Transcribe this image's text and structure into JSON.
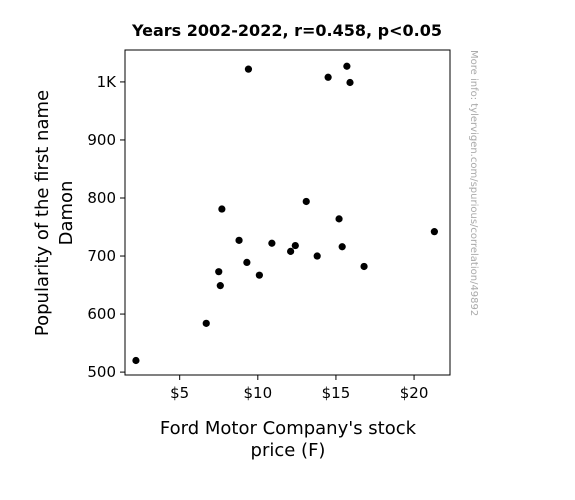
{
  "chart_data": {
    "type": "scatter",
    "title": "Years 2002-2022, r=0.458, p<0.05",
    "xlabel": [
      "Ford Motor Company's stock",
      "price (F)"
    ],
    "ylabel": [
      "Popularity of the first name",
      "Damon"
    ],
    "xlim": [
      1.5,
      22.3
    ],
    "ylim": [
      495,
      1055
    ],
    "x_ticks": [
      {
        "value": 5,
        "label": "$5"
      },
      {
        "value": 10,
        "label": "$10"
      },
      {
        "value": 15,
        "label": "$15"
      },
      {
        "value": 20,
        "label": "$20"
      }
    ],
    "y_ticks": [
      {
        "value": 500,
        "label": "500"
      },
      {
        "value": 600,
        "label": "600"
      },
      {
        "value": 700,
        "label": "700"
      },
      {
        "value": 800,
        "label": "800"
      },
      {
        "value": 900,
        "label": "900"
      },
      {
        "value": 1000,
        "label": "1K"
      }
    ],
    "points": [
      {
        "x": 2.2,
        "y": 520
      },
      {
        "x": 6.7,
        "y": 584
      },
      {
        "x": 7.5,
        "y": 673
      },
      {
        "x": 7.6,
        "y": 649
      },
      {
        "x": 7.7,
        "y": 781
      },
      {
        "x": 8.8,
        "y": 727
      },
      {
        "x": 9.3,
        "y": 689
      },
      {
        "x": 9.4,
        "y": 1022
      },
      {
        "x": 10.1,
        "y": 667
      },
      {
        "x": 10.9,
        "y": 722
      },
      {
        "x": 12.1,
        "y": 708
      },
      {
        "x": 12.4,
        "y": 718
      },
      {
        "x": 13.1,
        "y": 794
      },
      {
        "x": 13.8,
        "y": 700
      },
      {
        "x": 14.5,
        "y": 1008
      },
      {
        "x": 15.2,
        "y": 764
      },
      {
        "x": 15.4,
        "y": 716
      },
      {
        "x": 15.7,
        "y": 1027
      },
      {
        "x": 15.9,
        "y": 999
      },
      {
        "x": 16.8,
        "y": 682
      },
      {
        "x": 21.3,
        "y": 742
      }
    ],
    "point_color": "#000000",
    "grid": false,
    "legend": "none"
  },
  "watermark": "More info: tylervigen.com/spurious/correlation/49892"
}
